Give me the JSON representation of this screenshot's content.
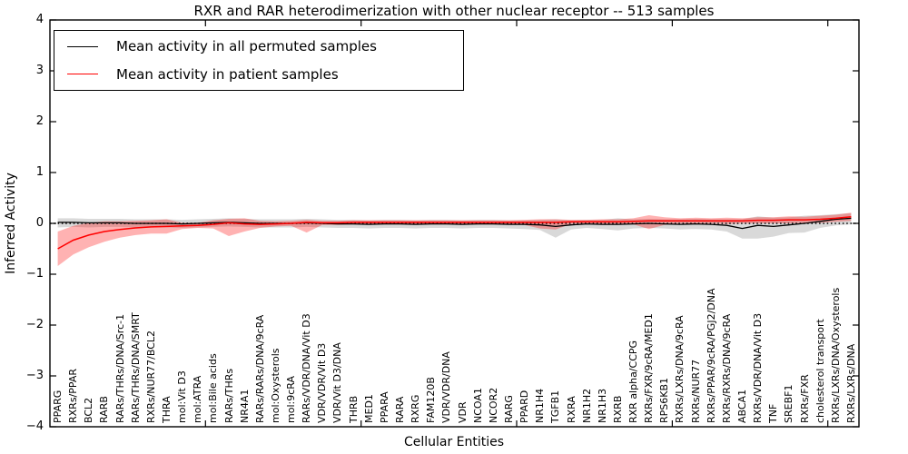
{
  "title": "RXR and RAR heterodimerization with other nuclear receptor -- 513 samples",
  "legend": {
    "items": [
      {
        "label": "Mean activity in all permuted samples",
        "color": "#000000"
      },
      {
        "label": "Mean activity in patient samples",
        "color": "#ff0000"
      }
    ]
  },
  "axes": {
    "ylabel": "Inferred Activity",
    "xlabel": "Cellular Entities",
    "yticks": [
      4,
      3,
      2,
      1,
      0,
      -1,
      -2,
      -3,
      -4
    ],
    "ylim": [
      -4,
      4
    ]
  },
  "chart_data": {
    "type": "line",
    "title": "RXR and RAR heterodimerization with other nuclear receptor -- 513 samples",
    "xlabel": "Cellular Entities",
    "ylabel": "Inferred Activity",
    "ylim": [
      -4,
      4
    ],
    "grid": false,
    "legend_position": "upper left",
    "zero_reference_line": 0,
    "band_alpha": {
      "permuted": 0.15,
      "patient": 0.3
    },
    "categories": [
      "PPARG",
      "RXRs/PPAR",
      "BCL2",
      "RARB",
      "RARs/THRs/DNA/Src-1",
      "RARs/THRs/DNA/SMRT",
      "RXRs/NUR77/BCL2",
      "THRA",
      "mol:Vit D3",
      "mol:ATRA",
      "mol:Bile acids",
      "RARs/THRs",
      "NR4A1",
      "RARs/RARs/DNA/9cRA",
      "mol:Oxysterols",
      "mol:9cRA",
      "RARs/VDR/DNA/Vit D3",
      "VDR/VDR/Vit D3",
      "VDR/Vit D3/DNA",
      "THRB",
      "MED1",
      "PPARA",
      "RARA",
      "RXRG",
      "FAM120B",
      "VDR/VDR/DNA",
      "VDR",
      "NCOA1",
      "NCOR2",
      "RARG",
      "PPARD",
      "NR1H4",
      "TGFB1",
      "RXRA",
      "NR1H2",
      "NR1H3",
      "RXRB",
      "RXR alpha/CCPG",
      "RXRs/FXR/9cRA/MED1",
      "RPS6KB1",
      "RXRs/LXRs/DNA/9cRA",
      "RXRs/NUR77",
      "RXRs/PPAR/9cRA/PGJ2/DNA",
      "RXRs/RXRs/DNA/9cRA",
      "ABCA1",
      "RXRs/VDR/DNA/Vit D3",
      "TNF",
      "SREBF1",
      "RXRs/FXR",
      "cholesterol transport",
      "RXRs/LXRs/DNA/Oxysterols",
      "RXRs/LXRs/DNA"
    ],
    "series": [
      {
        "name": "Mean activity in all permuted samples",
        "color": "#000000",
        "values": [
          0.02,
          0.02,
          0.01,
          0.01,
          0.01,
          0.0,
          0.0,
          0.0,
          -0.01,
          0.0,
          0.01,
          0.02,
          0.01,
          0.0,
          0.0,
          0.0,
          0.01,
          0.0,
          -0.01,
          -0.01,
          -0.02,
          -0.01,
          -0.01,
          -0.02,
          -0.01,
          -0.01,
          -0.02,
          -0.01,
          -0.01,
          -0.02,
          -0.02,
          -0.03,
          -0.06,
          -0.03,
          -0.01,
          -0.02,
          -0.02,
          -0.01,
          0.0,
          -0.01,
          -0.02,
          -0.01,
          -0.02,
          -0.04,
          -0.1,
          -0.04,
          -0.06,
          -0.03,
          0.0,
          0.04,
          0.08,
          0.1
        ],
        "band_upper": [
          0.1,
          0.1,
          0.09,
          0.09,
          0.09,
          0.08,
          0.08,
          0.08,
          0.07,
          0.08,
          0.09,
          0.1,
          0.09,
          0.08,
          0.08,
          0.08,
          0.09,
          0.08,
          0.07,
          0.07,
          0.06,
          0.07,
          0.07,
          0.06,
          0.07,
          0.07,
          0.06,
          0.07,
          0.07,
          0.06,
          0.06,
          0.07,
          0.08,
          0.06,
          0.07,
          0.07,
          0.1,
          0.08,
          0.09,
          0.08,
          0.08,
          0.09,
          0.08,
          0.08,
          0.08,
          0.14,
          0.11,
          0.12,
          0.15,
          0.16,
          0.18,
          0.2
        ],
        "band_lower": [
          -0.08,
          -0.07,
          -0.08,
          -0.07,
          -0.07,
          -0.08,
          -0.08,
          -0.08,
          -0.09,
          -0.08,
          -0.07,
          -0.06,
          -0.07,
          -0.08,
          -0.08,
          -0.08,
          -0.07,
          -0.08,
          -0.09,
          -0.09,
          -0.1,
          -0.09,
          -0.09,
          -0.1,
          -0.09,
          -0.09,
          -0.1,
          -0.09,
          -0.09,
          -0.1,
          -0.11,
          -0.13,
          -0.28,
          -0.12,
          -0.09,
          -0.11,
          -0.14,
          -0.1,
          -0.09,
          -0.1,
          -0.12,
          -0.11,
          -0.12,
          -0.16,
          -0.3,
          -0.3,
          -0.26,
          -0.19,
          -0.18,
          -0.09,
          -0.04,
          -0.02
        ]
      },
      {
        "name": "Mean activity in patient samples",
        "color": "#ff0000",
        "values": [
          -0.5,
          -0.33,
          -0.23,
          -0.16,
          -0.12,
          -0.09,
          -0.07,
          -0.06,
          -0.05,
          -0.04,
          -0.02,
          0.01,
          -0.01,
          -0.02,
          -0.01,
          0.0,
          0.02,
          0.01,
          0.01,
          0.02,
          0.02,
          0.02,
          0.02,
          0.02,
          0.02,
          0.02,
          0.02,
          0.02,
          0.02,
          0.02,
          0.02,
          0.02,
          0.02,
          0.03,
          0.03,
          0.03,
          0.03,
          0.04,
          0.05,
          0.05,
          0.05,
          0.05,
          0.05,
          0.05,
          0.05,
          0.06,
          0.06,
          0.07,
          0.07,
          0.08,
          0.1,
          0.13
        ],
        "band_upper": [
          -0.16,
          -0.05,
          0.01,
          0.04,
          0.04,
          0.05,
          0.06,
          0.08,
          0.01,
          0.01,
          0.06,
          0.09,
          0.1,
          0.05,
          0.04,
          0.05,
          0.07,
          0.05,
          0.05,
          0.06,
          0.06,
          0.06,
          0.06,
          0.06,
          0.06,
          0.06,
          0.06,
          0.06,
          0.06,
          0.06,
          0.07,
          0.08,
          0.08,
          0.07,
          0.07,
          0.08,
          0.08,
          0.1,
          0.16,
          0.12,
          0.1,
          0.11,
          0.1,
          0.11,
          0.1,
          0.12,
          0.12,
          0.14,
          0.13,
          0.15,
          0.17,
          0.21
        ],
        "band_lower": [
          -0.84,
          -0.61,
          -0.47,
          -0.36,
          -0.28,
          -0.23,
          -0.2,
          -0.2,
          -0.11,
          -0.09,
          -0.1,
          -0.25,
          -0.16,
          -0.09,
          -0.06,
          -0.05,
          -0.18,
          -0.03,
          -0.03,
          -0.02,
          -0.02,
          -0.02,
          -0.02,
          -0.02,
          -0.02,
          -0.02,
          -0.02,
          -0.02,
          -0.02,
          -0.02,
          -0.03,
          -0.1,
          -0.12,
          -0.01,
          -0.01,
          -0.02,
          -0.02,
          -0.02,
          -0.11,
          -0.03,
          0.0,
          -0.01,
          0.0,
          -0.01,
          0.0,
          0.0,
          0.0,
          0.0,
          0.01,
          0.01,
          0.03,
          0.05
        ]
      }
    ]
  }
}
